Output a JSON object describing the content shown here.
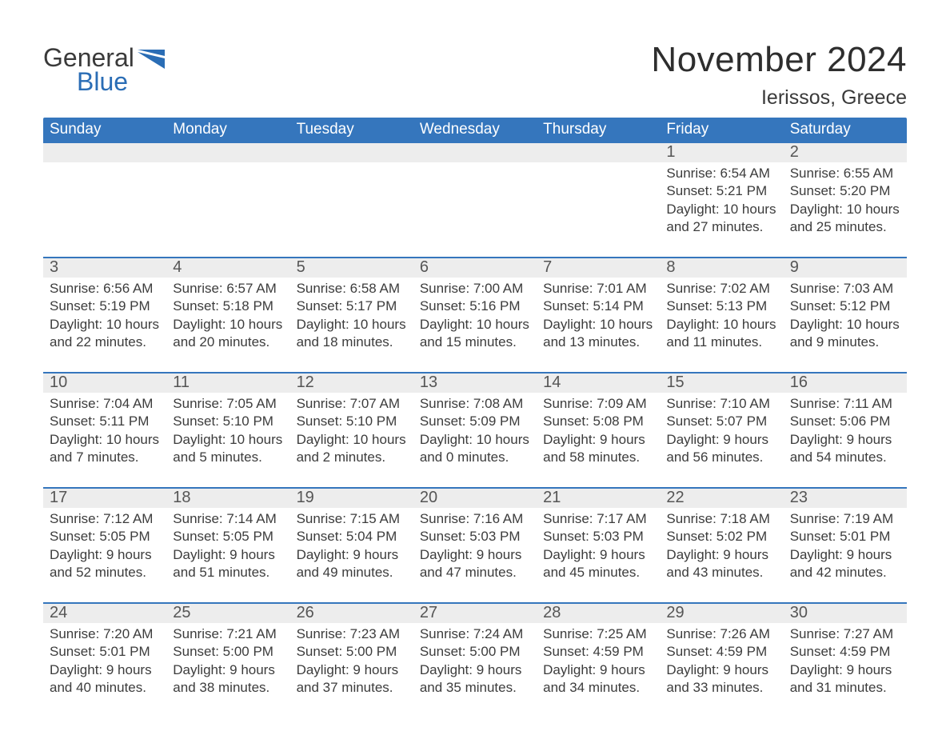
{
  "logo": {
    "general": "General",
    "blue": "Blue"
  },
  "title": "November 2024",
  "location": "Ierissos, Greece",
  "colors": {
    "header_bg": "#3576bd",
    "header_text": "#ffffff",
    "daynum_bg": "#ededed",
    "body_text": "#3c3c3c",
    "logo_dark": "#3a3a3a",
    "logo_blue": "#2a6db5",
    "page_bg": "#ffffff"
  },
  "weekdays": [
    "Sunday",
    "Monday",
    "Tuesday",
    "Wednesday",
    "Thursday",
    "Friday",
    "Saturday"
  ],
  "weeks": [
    {
      "days": [
        {
          "n": "",
          "lines": []
        },
        {
          "n": "",
          "lines": []
        },
        {
          "n": "",
          "lines": []
        },
        {
          "n": "",
          "lines": []
        },
        {
          "n": "",
          "lines": []
        },
        {
          "n": "1",
          "lines": [
            "Sunrise: 6:54 AM",
            "Sunset: 5:21 PM",
            "Daylight: 10 hours",
            "and 27 minutes."
          ]
        },
        {
          "n": "2",
          "lines": [
            "Sunrise: 6:55 AM",
            "Sunset: 5:20 PM",
            "Daylight: 10 hours",
            "and 25 minutes."
          ]
        }
      ]
    },
    {
      "days": [
        {
          "n": "3",
          "lines": [
            "Sunrise: 6:56 AM",
            "Sunset: 5:19 PM",
            "Daylight: 10 hours",
            "and 22 minutes."
          ]
        },
        {
          "n": "4",
          "lines": [
            "Sunrise: 6:57 AM",
            "Sunset: 5:18 PM",
            "Daylight: 10 hours",
            "and 20 minutes."
          ]
        },
        {
          "n": "5",
          "lines": [
            "Sunrise: 6:58 AM",
            "Sunset: 5:17 PM",
            "Daylight: 10 hours",
            "and 18 minutes."
          ]
        },
        {
          "n": "6",
          "lines": [
            "Sunrise: 7:00 AM",
            "Sunset: 5:16 PM",
            "Daylight: 10 hours",
            "and 15 minutes."
          ]
        },
        {
          "n": "7",
          "lines": [
            "Sunrise: 7:01 AM",
            "Sunset: 5:14 PM",
            "Daylight: 10 hours",
            "and 13 minutes."
          ]
        },
        {
          "n": "8",
          "lines": [
            "Sunrise: 7:02 AM",
            "Sunset: 5:13 PM",
            "Daylight: 10 hours",
            "and 11 minutes."
          ]
        },
        {
          "n": "9",
          "lines": [
            "Sunrise: 7:03 AM",
            "Sunset: 5:12 PM",
            "Daylight: 10 hours",
            "and 9 minutes."
          ]
        }
      ]
    },
    {
      "days": [
        {
          "n": "10",
          "lines": [
            "Sunrise: 7:04 AM",
            "Sunset: 5:11 PM",
            "Daylight: 10 hours",
            "and 7 minutes."
          ]
        },
        {
          "n": "11",
          "lines": [
            "Sunrise: 7:05 AM",
            "Sunset: 5:10 PM",
            "Daylight: 10 hours",
            "and 5 minutes."
          ]
        },
        {
          "n": "12",
          "lines": [
            "Sunrise: 7:07 AM",
            "Sunset: 5:10 PM",
            "Daylight: 10 hours",
            "and 2 minutes."
          ]
        },
        {
          "n": "13",
          "lines": [
            "Sunrise: 7:08 AM",
            "Sunset: 5:09 PM",
            "Daylight: 10 hours",
            "and 0 minutes."
          ]
        },
        {
          "n": "14",
          "lines": [
            "Sunrise: 7:09 AM",
            "Sunset: 5:08 PM",
            "Daylight: 9 hours",
            "and 58 minutes."
          ]
        },
        {
          "n": "15",
          "lines": [
            "Sunrise: 7:10 AM",
            "Sunset: 5:07 PM",
            "Daylight: 9 hours",
            "and 56 minutes."
          ]
        },
        {
          "n": "16",
          "lines": [
            "Sunrise: 7:11 AM",
            "Sunset: 5:06 PM",
            "Daylight: 9 hours",
            "and 54 minutes."
          ]
        }
      ]
    },
    {
      "days": [
        {
          "n": "17",
          "lines": [
            "Sunrise: 7:12 AM",
            "Sunset: 5:05 PM",
            "Daylight: 9 hours",
            "and 52 minutes."
          ]
        },
        {
          "n": "18",
          "lines": [
            "Sunrise: 7:14 AM",
            "Sunset: 5:05 PM",
            "Daylight: 9 hours",
            "and 51 minutes."
          ]
        },
        {
          "n": "19",
          "lines": [
            "Sunrise: 7:15 AM",
            "Sunset: 5:04 PM",
            "Daylight: 9 hours",
            "and 49 minutes."
          ]
        },
        {
          "n": "20",
          "lines": [
            "Sunrise: 7:16 AM",
            "Sunset: 5:03 PM",
            "Daylight: 9 hours",
            "and 47 minutes."
          ]
        },
        {
          "n": "21",
          "lines": [
            "Sunrise: 7:17 AM",
            "Sunset: 5:03 PM",
            "Daylight: 9 hours",
            "and 45 minutes."
          ]
        },
        {
          "n": "22",
          "lines": [
            "Sunrise: 7:18 AM",
            "Sunset: 5:02 PM",
            "Daylight: 9 hours",
            "and 43 minutes."
          ]
        },
        {
          "n": "23",
          "lines": [
            "Sunrise: 7:19 AM",
            "Sunset: 5:01 PM",
            "Daylight: 9 hours",
            "and 42 minutes."
          ]
        }
      ]
    },
    {
      "days": [
        {
          "n": "24",
          "lines": [
            "Sunrise: 7:20 AM",
            "Sunset: 5:01 PM",
            "Daylight: 9 hours",
            "and 40 minutes."
          ]
        },
        {
          "n": "25",
          "lines": [
            "Sunrise: 7:21 AM",
            "Sunset: 5:00 PM",
            "Daylight: 9 hours",
            "and 38 minutes."
          ]
        },
        {
          "n": "26",
          "lines": [
            "Sunrise: 7:23 AM",
            "Sunset: 5:00 PM",
            "Daylight: 9 hours",
            "and 37 minutes."
          ]
        },
        {
          "n": "27",
          "lines": [
            "Sunrise: 7:24 AM",
            "Sunset: 5:00 PM",
            "Daylight: 9 hours",
            "and 35 minutes."
          ]
        },
        {
          "n": "28",
          "lines": [
            "Sunrise: 7:25 AM",
            "Sunset: 4:59 PM",
            "Daylight: 9 hours",
            "and 34 minutes."
          ]
        },
        {
          "n": "29",
          "lines": [
            "Sunrise: 7:26 AM",
            "Sunset: 4:59 PM",
            "Daylight: 9 hours",
            "and 33 minutes."
          ]
        },
        {
          "n": "30",
          "lines": [
            "Sunrise: 7:27 AM",
            "Sunset: 4:59 PM",
            "Daylight: 9 hours",
            "and 31 minutes."
          ]
        }
      ]
    }
  ]
}
